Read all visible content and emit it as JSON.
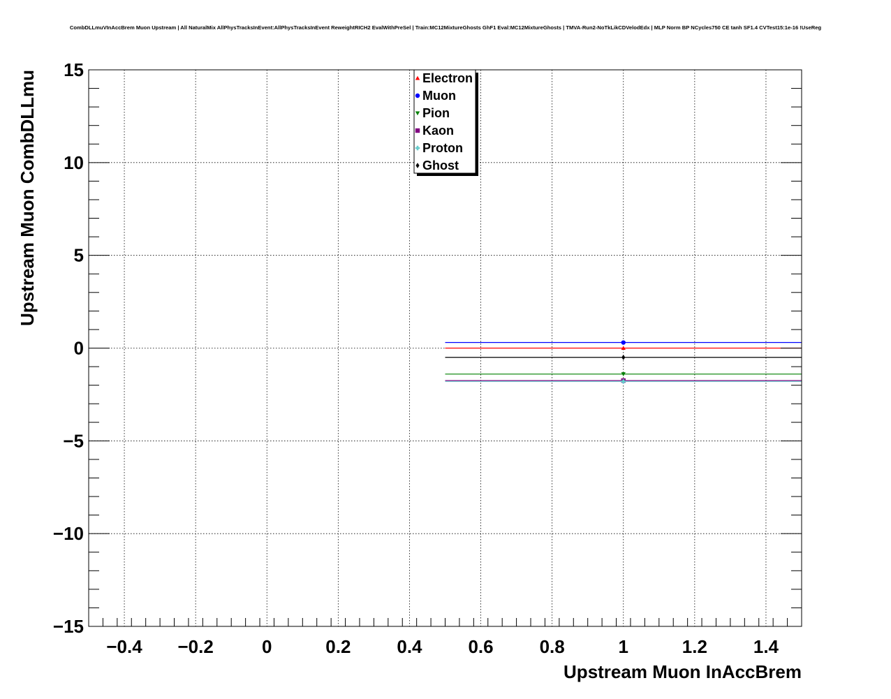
{
  "chart_data": {
    "type": "scatter",
    "title": "CombDLLmuVInAccBrem Muon Upstream | All NaturalMix AllPhysTracksInEvent:AllPhysTracksInEvent ReweightRICH2 EvalWithPreSel | Train:MC12MixtureGhosts GhF1 Eval:MC12MixtureGhosts | TMVA-Run2-NoTkLikCDVelodEdx | MLP Norm BP NCycles750 CE tanh SF1.4 CVTest15:1e-16 !UseReg",
    "xlabel": "Upstream Muon InAccBrem",
    "ylabel": "Upstream Muon CombDLLmu",
    "xlim": [
      -0.5,
      1.5
    ],
    "ylim": [
      -15,
      15
    ],
    "x_ticks": [
      -0.4,
      -0.2,
      0,
      0.2,
      0.4,
      0.6,
      0.8,
      1,
      1.2,
      1.4
    ],
    "x_tick_labels": [
      "−0.4",
      "−0.2",
      "0",
      "0.2",
      "0.4",
      "0.6",
      "0.8",
      "1",
      "1.2",
      "1.4"
    ],
    "y_ticks": [
      -15,
      -10,
      -5,
      0,
      5,
      10,
      15
    ],
    "y_tick_labels": [
      "−15",
      "−10",
      "−5",
      "0",
      "5",
      "10",
      "15"
    ],
    "grid": true,
    "legend_position": "top-center",
    "series": [
      {
        "name": "Electron",
        "color": "#ff0000",
        "marker": "triangle-up",
        "x": [
          1
        ],
        "y": [
          0.0
        ],
        "xerr": [
          0.5
        ]
      },
      {
        "name": "Muon",
        "color": "#0000ff",
        "marker": "circle",
        "x": [
          1
        ],
        "y": [
          0.3
        ],
        "xerr": [
          0.5
        ]
      },
      {
        "name": "Pion",
        "color": "#008000",
        "marker": "triangle-down",
        "x": [
          1
        ],
        "y": [
          -1.4
        ],
        "xerr": [
          0.5
        ]
      },
      {
        "name": "Kaon",
        "color": "#800080",
        "marker": "square",
        "x": [
          1
        ],
        "y": [
          -1.75
        ],
        "xerr": [
          0.5
        ]
      },
      {
        "name": "Proton",
        "color": "#66cccc",
        "marker": "cross",
        "x": [
          1
        ],
        "y": [
          -1.8
        ],
        "xerr": [
          0.5
        ]
      },
      {
        "name": "Ghost",
        "color": "#000000",
        "marker": "diamond",
        "x": [
          1
        ],
        "y": [
          -0.5
        ],
        "xerr": [
          0.5
        ]
      }
    ]
  }
}
